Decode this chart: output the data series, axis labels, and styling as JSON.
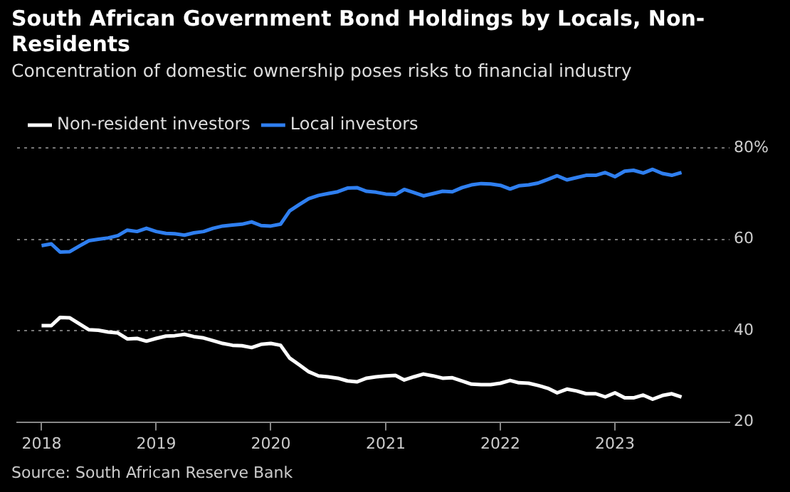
{
  "chart_data": {
    "type": "line",
    "title": "South African Government Bond Holdings by Locals, Non-Residents",
    "subtitle": "Concentration of domestic ownership poses risks to financial industry",
    "annotations": [
      "Source: South African Reserve Bank"
    ],
    "x": [
      "2018-01",
      "2018-02",
      "2018-03",
      "2018-04",
      "2018-05",
      "2018-06",
      "2018-07",
      "2018-08",
      "2018-09",
      "2018-10",
      "2018-11",
      "2018-12",
      "2019-01",
      "2019-02",
      "2019-03",
      "2019-04",
      "2019-05",
      "2019-06",
      "2019-07",
      "2019-08",
      "2019-09",
      "2019-10",
      "2019-11",
      "2019-12",
      "2020-01",
      "2020-02",
      "2020-03",
      "2020-04",
      "2020-05",
      "2020-06",
      "2020-07",
      "2020-08",
      "2020-09",
      "2020-10",
      "2020-11",
      "2020-12",
      "2021-01",
      "2021-02",
      "2021-03",
      "2021-04",
      "2021-05",
      "2021-06",
      "2021-07",
      "2021-08",
      "2021-09",
      "2021-10",
      "2021-11",
      "2021-12",
      "2022-01",
      "2022-02",
      "2022-03",
      "2022-04",
      "2022-05",
      "2022-06",
      "2022-07",
      "2022-08",
      "2022-09",
      "2022-10",
      "2022-11",
      "2022-12",
      "2023-01",
      "2023-02",
      "2023-03",
      "2023-04",
      "2023-05",
      "2023-06",
      "2023-07",
      "2023-08"
    ],
    "series": [
      {
        "name": "Non-resident investors",
        "color": "#ffffff",
        "values": [
          41.1,
          41.1,
          42.9,
          42.8,
          41.5,
          40.2,
          40.1,
          39.7,
          39.5,
          38.2,
          38.3,
          37.7,
          38.3,
          38.8,
          38.9,
          39.2,
          38.7,
          38.4,
          37.8,
          37.2,
          36.8,
          36.7,
          36.3,
          37.0,
          37.2,
          36.8,
          34.0,
          32.5,
          31.0,
          30.1,
          29.9,
          29.6,
          29.0,
          28.8,
          29.6,
          29.9,
          30.1,
          30.2,
          29.2,
          29.9,
          30.5,
          30.1,
          29.6,
          29.7,
          29.0,
          28.3,
          28.2,
          28.2,
          28.5,
          29.1,
          28.6,
          28.5,
          28.0,
          27.4,
          26.4,
          27.2,
          26.8,
          26.2,
          26.2,
          25.5,
          26.4,
          25.3,
          25.3,
          25.9,
          25.0,
          25.8,
          26.2,
          25.5
        ]
      },
      {
        "name": "Local investors",
        "color": "#2f7ff0",
        "values": [
          58.6,
          59.0,
          57.2,
          57.3,
          58.5,
          59.7,
          60.0,
          60.3,
          60.8,
          62.0,
          61.7,
          62.4,
          61.7,
          61.3,
          61.2,
          60.9,
          61.4,
          61.7,
          62.4,
          62.9,
          63.1,
          63.3,
          63.8,
          63.0,
          62.9,
          63.3,
          66.2,
          67.6,
          68.9,
          69.6,
          70.0,
          70.4,
          71.2,
          71.3,
          70.5,
          70.3,
          69.9,
          69.8,
          70.9,
          70.2,
          69.5,
          70.0,
          70.5,
          70.4,
          71.3,
          71.9,
          72.2,
          72.1,
          71.8,
          71.0,
          71.7,
          71.9,
          72.3,
          73.1,
          73.9,
          73.0,
          73.5,
          74.0,
          74.0,
          74.6,
          73.7,
          74.9,
          75.1,
          74.5,
          75.3,
          74.4,
          74.0,
          74.6
        ]
      }
    ],
    "xlim": [
      "2017-10-15",
      "2024-01-01"
    ],
    "xticks": [
      {
        "value": "2018-01-01",
        "label": "2018"
      },
      {
        "value": "2019-01-01",
        "label": "2019"
      },
      {
        "value": "2020-01-01",
        "label": "2020"
      },
      {
        "value": "2021-01-01",
        "label": "2021"
      },
      {
        "value": "2022-01-01",
        "label": "2022"
      },
      {
        "value": "2023-01-01",
        "label": "2023"
      }
    ],
    "ylim": [
      20,
      80
    ],
    "yticks": [
      20,
      40,
      60,
      {
        "value": 80,
        "label": "80%"
      }
    ],
    "grid": "y",
    "legend": "top left",
    "marker": "none",
    "line_style": "solid"
  }
}
